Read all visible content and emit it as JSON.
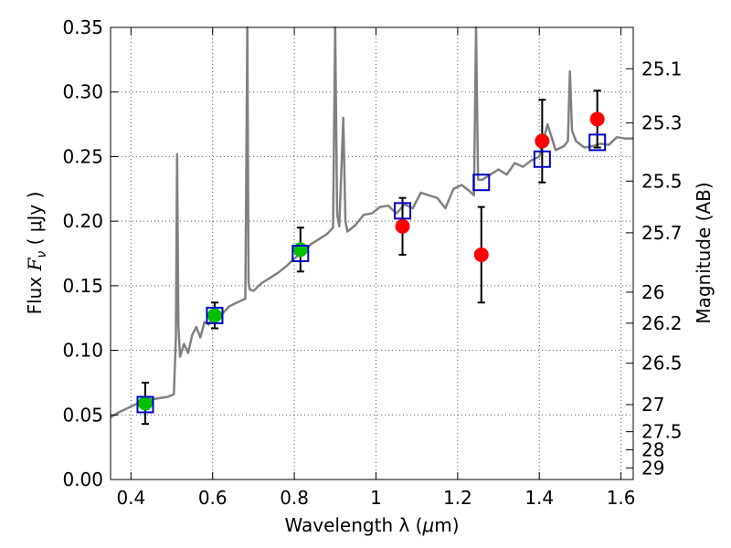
{
  "chart_data": {
    "type": "scatter",
    "xlabel_text": "Wavelength  λ (",
    "xlabel_unit": "μ",
    "xlabel_end": "m)",
    "ylabel_text": "Flux  ",
    "ylabel_var": "F",
    "ylabel_sub": "ν",
    "ylabel_unit": "  ( μJy )",
    "y2label": "Magnitude (AB)",
    "xlim": [
      0.35,
      1.63
    ],
    "ylim": [
      0.0,
      0.35
    ],
    "grid": true,
    "x_ticks": [
      {
        "v": 0.4,
        "label": "0.4"
      },
      {
        "v": 0.6,
        "label": "0.6"
      },
      {
        "v": 0.8,
        "label": "0.8"
      },
      {
        "v": 1.0,
        "label": "1"
      },
      {
        "v": 1.2,
        "label": "1.2"
      },
      {
        "v": 1.4,
        "label": "1.4"
      },
      {
        "v": 1.6,
        "label": "1.6"
      }
    ],
    "y_ticks": [
      {
        "v": 0.0,
        "label": "0.00"
      },
      {
        "v": 0.05,
        "label": "0.05"
      },
      {
        "v": 0.1,
        "label": "0.10"
      },
      {
        "v": 0.15,
        "label": "0.15"
      },
      {
        "v": 0.2,
        "label": "0.20"
      },
      {
        "v": 0.25,
        "label": "0.25"
      },
      {
        "v": 0.3,
        "label": "0.30"
      },
      {
        "v": 0.35,
        "label": "0.35"
      }
    ],
    "y2_ticks": [
      {
        "flux": 0.318,
        "label": "25.1"
      },
      {
        "flux": 0.276,
        "label": "25.3"
      },
      {
        "flux": 0.231,
        "label": "25.5"
      },
      {
        "flux": 0.191,
        "label": "25.7"
      },
      {
        "flux": 0.145,
        "label": "26"
      },
      {
        "flux": 0.121,
        "label": "26.2"
      },
      {
        "flux": 0.09,
        "label": "26.5"
      },
      {
        "flux": 0.058,
        "label": "27"
      },
      {
        "flux": 0.037,
        "label": "27.5"
      },
      {
        "flux": 0.023,
        "label": "28"
      },
      {
        "flux": 0.009,
        "label": "29"
      }
    ],
    "spectrum": {
      "color": "#808080",
      "x": [
        0.35,
        0.37,
        0.39,
        0.41,
        0.43,
        0.45,
        0.47,
        0.49,
        0.505,
        0.51,
        0.513,
        0.516,
        0.52,
        0.53,
        0.54,
        0.55,
        0.56,
        0.57,
        0.58,
        0.59,
        0.6,
        0.62,
        0.64,
        0.66,
        0.68,
        0.685,
        0.688,
        0.691,
        0.7,
        0.72,
        0.74,
        0.76,
        0.78,
        0.8,
        0.82,
        0.84,
        0.86,
        0.88,
        0.895,
        0.9,
        0.905,
        0.91,
        0.92,
        0.925,
        0.93,
        0.95,
        0.97,
        0.99,
        1.01,
        1.03,
        1.05,
        1.07,
        1.09,
        1.11,
        1.13,
        1.15,
        1.17,
        1.19,
        1.21,
        1.23,
        1.24,
        1.245,
        1.25,
        1.26,
        1.28,
        1.3,
        1.32,
        1.34,
        1.36,
        1.38,
        1.4,
        1.42,
        1.44,
        1.46,
        1.47,
        1.475,
        1.48,
        1.49,
        1.51,
        1.53,
        1.55,
        1.57,
        1.59,
        1.61,
        1.63
      ],
      "y": [
        0.048,
        0.052,
        0.055,
        0.058,
        0.061,
        0.062,
        0.063,
        0.064,
        0.066,
        0.11,
        0.252,
        0.12,
        0.095,
        0.105,
        0.098,
        0.112,
        0.118,
        0.11,
        0.122,
        0.12,
        0.126,
        0.127,
        0.134,
        0.137,
        0.14,
        0.35,
        0.152,
        0.147,
        0.146,
        0.152,
        0.156,
        0.16,
        0.165,
        0.171,
        0.176,
        0.182,
        0.186,
        0.19,
        0.195,
        0.35,
        0.205,
        0.196,
        0.28,
        0.2,
        0.192,
        0.197,
        0.205,
        0.206,
        0.211,
        0.212,
        0.206,
        0.213,
        0.21,
        0.222,
        0.22,
        0.218,
        0.21,
        0.225,
        0.228,
        0.223,
        0.22,
        0.35,
        0.232,
        0.232,
        0.236,
        0.24,
        0.236,
        0.245,
        0.242,
        0.247,
        0.25,
        0.275,
        0.255,
        0.258,
        0.262,
        0.316,
        0.27,
        0.262,
        0.257,
        0.258,
        0.26,
        0.259,
        0.265,
        0.264,
        0.264
      ]
    },
    "series": [
      {
        "marker": "circle",
        "color": "#00c000",
        "x": [
          0.435,
          0.605,
          0.815
        ],
        "y": [
          0.059,
          0.127,
          0.178
        ],
        "err": [
          0.016,
          0.01,
          0.017
        ]
      },
      {
        "marker": "circle",
        "color": "#ff0000",
        "x": [
          1.065,
          1.258,
          1.407,
          1.542
        ],
        "y": [
          0.196,
          0.174,
          0.262,
          0.279
        ],
        "err": [
          0.022,
          0.037,
          0.032,
          0.022
        ]
      },
      {
        "marker": "open-square",
        "color": "#0000cc",
        "x": [
          0.435,
          0.605,
          0.815,
          1.065,
          1.258,
          1.407,
          1.542
        ],
        "y": [
          0.058,
          0.127,
          0.175,
          0.208,
          0.23,
          0.248,
          0.261
        ]
      }
    ]
  }
}
